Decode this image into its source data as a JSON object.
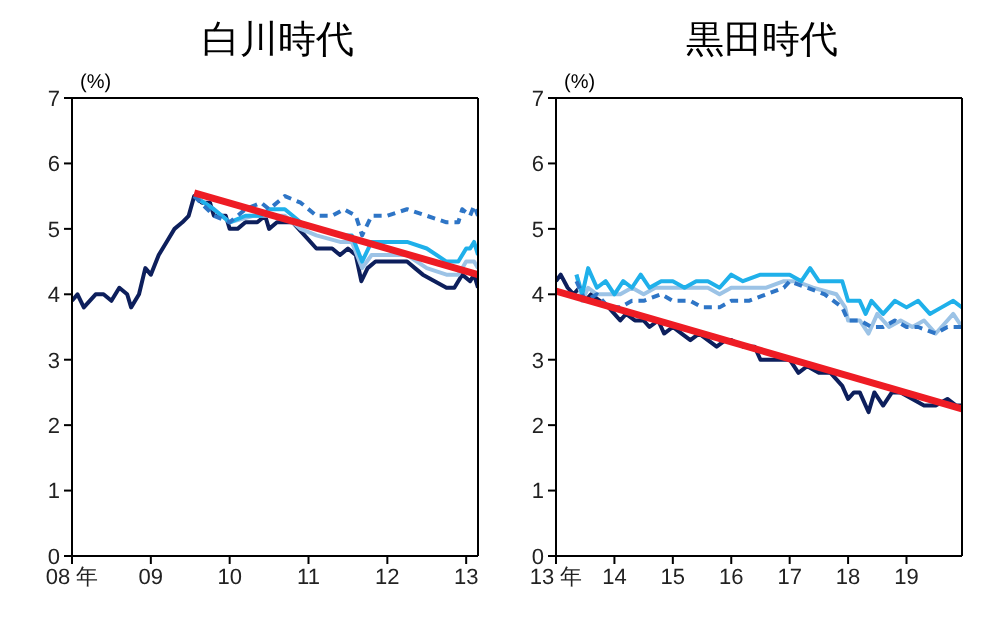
{
  "chart_data": [
    {
      "type": "line",
      "title": "白川時代",
      "ylabel": "(%)",
      "xlim": [
        8,
        13.15
      ],
      "xticks": [
        {
          "value": 8,
          "label": "08 年"
        },
        {
          "value": 9,
          "label": "09"
        },
        10,
        11,
        12,
        13
      ],
      "ylim": [
        0,
        7
      ],
      "yticks": [
        0,
        1,
        2,
        3,
        4,
        5,
        6,
        7
      ],
      "series": [
        {
          "color": "#0d1f5c",
          "x": [
            8,
            8.07,
            8.15,
            8.3,
            8.4,
            8.5,
            8.6,
            8.7,
            8.75,
            8.85,
            8.93,
            9,
            9.1,
            9.2,
            9.3,
            9.4,
            9.48,
            9.55,
            9.65,
            9.75,
            9.8,
            9.95,
            10,
            10.1,
            10.2,
            10.35,
            10.45,
            10.5,
            10.6,
            10.8,
            10.95,
            11.1,
            11.3,
            11.4,
            11.5,
            11.6,
            11.67,
            11.75,
            11.85,
            12,
            12.25,
            12.35,
            12.45,
            12.6,
            12.75,
            12.85,
            12.95,
            13.05,
            13.1,
            13.15
          ],
          "values": [
            3.9,
            4.0,
            3.8,
            4.0,
            4.0,
            3.9,
            4.1,
            4.0,
            3.8,
            4.0,
            4.4,
            4.3,
            4.6,
            4.8,
            5.0,
            5.1,
            5.2,
            5.5,
            5.4,
            5.4,
            5.2,
            5.2,
            5.0,
            5.0,
            5.1,
            5.1,
            5.2,
            5.0,
            5.1,
            5.1,
            4.9,
            4.7,
            4.7,
            4.6,
            4.7,
            4.6,
            4.2,
            4.4,
            4.5,
            4.5,
            4.5,
            4.4,
            4.3,
            4.2,
            4.1,
            4.1,
            4.3,
            4.2,
            4.3,
            4.1
          ]
        },
        {
          "color": "#9cc3e6",
          "x": [
            9.55,
            9.8,
            10,
            10.3,
            10.5,
            10.7,
            10.9,
            11.1,
            11.4,
            11.55,
            11.68,
            11.8,
            12,
            12.25,
            12.5,
            12.75,
            12.9,
            13,
            13.1,
            13.15
          ],
          "values": [
            5.5,
            5.3,
            5.1,
            5.2,
            5.2,
            5.2,
            5.0,
            4.9,
            4.8,
            4.8,
            4.4,
            4.6,
            4.6,
            4.6,
            4.4,
            4.3,
            4.3,
            4.5,
            4.5,
            4.4
          ]
        },
        {
          "color": "#1fb0ea",
          "x": [
            9.55,
            9.8,
            10,
            10.2,
            10.4,
            10.5,
            10.7,
            10.9,
            11.1,
            11.4,
            11.55,
            11.68,
            11.8,
            12,
            12.25,
            12.5,
            12.75,
            12.9,
            13,
            13.05,
            13.1,
            13.15
          ],
          "values": [
            5.5,
            5.3,
            5.1,
            5.2,
            5.2,
            5.3,
            5.3,
            5.1,
            5.0,
            4.9,
            4.9,
            4.5,
            4.8,
            4.8,
            4.8,
            4.7,
            4.5,
            4.5,
            4.7,
            4.7,
            4.8,
            4.6
          ]
        },
        {
          "color": "#2e75c6",
          "line_style": "dashed",
          "x": [
            9.55,
            9.8,
            10,
            10.2,
            10.4,
            10.5,
            10.7,
            10.9,
            11.1,
            11.3,
            11.45,
            11.6,
            11.68,
            11.8,
            12,
            12.25,
            12.5,
            12.75,
            12.9,
            12.95,
            13.05,
            13.1,
            13.15
          ],
          "values": [
            5.5,
            5.2,
            5.1,
            5.3,
            5.4,
            5.3,
            5.5,
            5.4,
            5.2,
            5.2,
            5.3,
            5.2,
            4.9,
            5.2,
            5.2,
            5.3,
            5.2,
            5.1,
            5.1,
            5.3,
            5.2,
            5.35,
            5.2
          ]
        },
        {
          "color": "#ee1c24",
          "x": [
            9.55,
            13.15
          ],
          "values": [
            5.55,
            4.3
          ]
        }
      ]
    },
    {
      "type": "line",
      "title": "黒田時代",
      "ylabel": "(%)",
      "xlim": [
        13,
        19.95
      ],
      "xticks": [
        {
          "value": 13,
          "label": "13 年"
        },
        14,
        15,
        16,
        17,
        18,
        19
      ],
      "ylim": [
        0,
        7
      ],
      "yticks": [
        0,
        1,
        2,
        3,
        4,
        5,
        6,
        7
      ],
      "series": [
        {
          "color": "#0d1f5c",
          "x": [
            13,
            13.08,
            13.2,
            13.3,
            13.4,
            13.5,
            13.6,
            13.75,
            13.9,
            14,
            14.1,
            14.2,
            14.35,
            14.5,
            14.6,
            14.75,
            14.85,
            15,
            15.15,
            15.3,
            15.45,
            15.6,
            15.75,
            15.9,
            16,
            16.2,
            16.4,
            16.5,
            16.7,
            16.9,
            17,
            17.15,
            17.3,
            17.5,
            17.7,
            17.9,
            18,
            18.1,
            18.2,
            18.35,
            18.45,
            18.6,
            18.75,
            18.9,
            19.1,
            19.3,
            19.5,
            19.7,
            19.85,
            19.95
          ],
          "values": [
            4.2,
            4.3,
            4.1,
            4.0,
            4.1,
            3.9,
            4.0,
            3.9,
            3.8,
            3.7,
            3.6,
            3.7,
            3.6,
            3.6,
            3.5,
            3.6,
            3.4,
            3.5,
            3.4,
            3.3,
            3.4,
            3.3,
            3.2,
            3.3,
            3.3,
            3.2,
            3.2,
            3.0,
            3.0,
            3.0,
            3.0,
            2.8,
            2.9,
            2.8,
            2.8,
            2.6,
            2.4,
            2.5,
            2.5,
            2.2,
            2.5,
            2.3,
            2.5,
            2.5,
            2.4,
            2.3,
            2.3,
            2.4,
            2.3,
            2.3
          ]
        },
        {
          "color": "#9cc3e6",
          "x": [
            13.35,
            13.45,
            13.55,
            13.7,
            13.9,
            14.1,
            14.3,
            14.5,
            14.7,
            15,
            15.3,
            15.6,
            15.8,
            16,
            16.3,
            16.6,
            16.9,
            17.1,
            17.4,
            17.8,
            17.95,
            18,
            18.2,
            18.35,
            18.5,
            18.7,
            18.9,
            19.1,
            19.3,
            19.5,
            19.7,
            19.8,
            19.95
          ],
          "values": [
            4.3,
            3.9,
            4.1,
            4.0,
            4.0,
            4.0,
            4.1,
            4.0,
            4.1,
            4.1,
            4.1,
            4.1,
            4.0,
            4.1,
            4.1,
            4.1,
            4.2,
            4.2,
            4.1,
            4.0,
            3.8,
            3.6,
            3.6,
            3.4,
            3.7,
            3.5,
            3.6,
            3.5,
            3.6,
            3.4,
            3.6,
            3.7,
            3.5
          ]
        },
        {
          "color": "#1fb0ea",
          "x": [
            13.35,
            13.45,
            13.55,
            13.7,
            13.85,
            14,
            14.15,
            14.3,
            14.45,
            14.6,
            14.8,
            15,
            15.2,
            15.4,
            15.6,
            15.8,
            16,
            16.2,
            16.5,
            16.8,
            17,
            17.2,
            17.35,
            17.5,
            17.9,
            18,
            18.2,
            18.3,
            18.4,
            18.6,
            18.8,
            19,
            19.2,
            19.4,
            19.6,
            19.8,
            19.95
          ],
          "values": [
            4.3,
            4.0,
            4.4,
            4.1,
            4.2,
            4.0,
            4.2,
            4.1,
            4.3,
            4.1,
            4.2,
            4.2,
            4.1,
            4.2,
            4.2,
            4.1,
            4.3,
            4.2,
            4.3,
            4.3,
            4.3,
            4.2,
            4.4,
            4.2,
            4.2,
            3.9,
            3.9,
            3.7,
            3.9,
            3.7,
            3.9,
            3.8,
            3.9,
            3.7,
            3.8,
            3.9,
            3.8
          ]
        },
        {
          "color": "#2e75c6",
          "line_style": "dashed",
          "x": [
            13.35,
            13.5,
            13.7,
            13.9,
            14.1,
            14.3,
            14.5,
            14.8,
            15,
            15.3,
            15.5,
            15.8,
            16,
            16.3,
            16.6,
            16.9,
            17,
            17.3,
            17.6,
            17.9,
            18,
            18.2,
            18.4,
            18.6,
            18.8,
            19,
            19.2,
            19.5,
            19.7,
            19.95
          ],
          "values": [
            4.2,
            3.9,
            4.0,
            3.8,
            3.8,
            3.9,
            3.9,
            4.0,
            3.9,
            3.9,
            3.8,
            3.8,
            3.9,
            3.9,
            4.0,
            4.1,
            4.2,
            4.1,
            4.0,
            3.8,
            3.6,
            3.6,
            3.5,
            3.5,
            3.6,
            3.5,
            3.5,
            3.4,
            3.5,
            3.5
          ]
        },
        {
          "color": "#ee1c24",
          "x": [
            13,
            19.95
          ],
          "values": [
            4.05,
            2.25
          ]
        }
      ]
    }
  ]
}
